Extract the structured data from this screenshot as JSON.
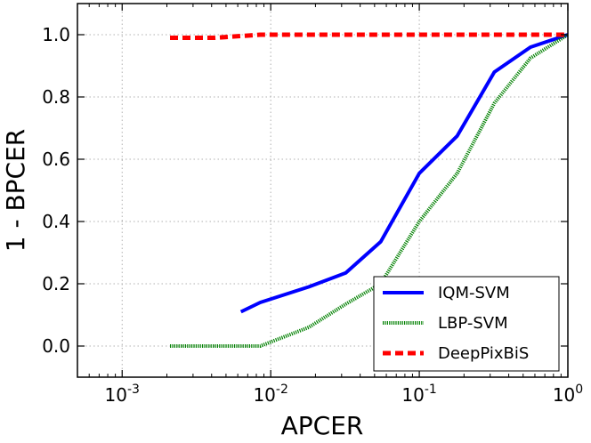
{
  "chart_data": {
    "type": "line",
    "title": "",
    "xlabel": "APCER",
    "ylabel": "1 - BPCER",
    "xscale": "log",
    "xlim": [
      0.0005,
      1.0
    ],
    "ylim": [
      -0.1,
      1.1
    ],
    "grid": true,
    "legend_position": "bottom-right",
    "xticks": [
      {
        "value": 0.001,
        "base": "10",
        "exp": "-3"
      },
      {
        "value": 0.01,
        "base": "10",
        "exp": "-2"
      },
      {
        "value": 0.1,
        "base": "10",
        "exp": "-1"
      },
      {
        "value": 1.0,
        "base": "10",
        "exp": "0"
      }
    ],
    "yticks": [
      {
        "value": 0.0,
        "label": "0.0"
      },
      {
        "value": 0.2,
        "label": "0.2"
      },
      {
        "value": 0.4,
        "label": "0.4"
      },
      {
        "value": 0.6,
        "label": "0.6"
      },
      {
        "value": 0.8,
        "label": "0.8"
      },
      {
        "value": 1.0,
        "label": "1.0"
      }
    ],
    "series": [
      {
        "name": "IQM-SVM",
        "color": "#0000ff",
        "style": "solid",
        "x": [
          0.0063,
          0.0085,
          0.018,
          0.032,
          0.055,
          0.1,
          0.18,
          0.32,
          0.56,
          1.0
        ],
        "y": [
          0.11,
          0.14,
          0.19,
          0.235,
          0.335,
          0.555,
          0.675,
          0.88,
          0.96,
          1.0
        ]
      },
      {
        "name": "LBP-SVM",
        "color": "#008000",
        "style": "dotted",
        "x": [
          0.0021,
          0.0085,
          0.018,
          0.032,
          0.055,
          0.1,
          0.18,
          0.32,
          0.56,
          1.0
        ],
        "y": [
          0.0,
          0.0,
          0.06,
          0.135,
          0.2,
          0.4,
          0.555,
          0.78,
          0.925,
          1.0
        ]
      },
      {
        "name": "DeepPixBiS",
        "color": "#ff0000",
        "style": "dashed",
        "x": [
          0.0021,
          0.0042,
          0.0085,
          0.018,
          0.1,
          0.56,
          1.0
        ],
        "y": [
          0.99,
          0.99,
          1.0,
          1.0,
          1.0,
          1.0,
          1.0
        ]
      }
    ]
  }
}
